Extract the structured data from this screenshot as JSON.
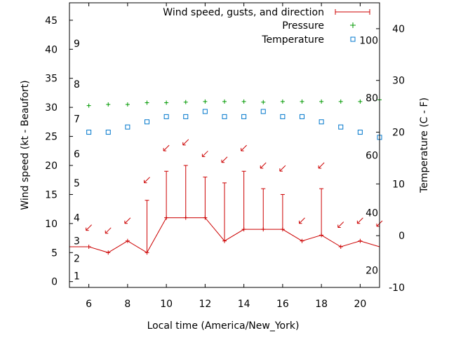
{
  "chart_data": {
    "type": "line",
    "xlabel": "Local time (America/New_York)",
    "ylabel_left": "Wind speed (kt - Beaufort)",
    "ylabel_right": "Temperature (C - F)",
    "xlim": [
      5,
      21
    ],
    "ylim_left": [
      -1,
      48
    ],
    "ylim_right": [
      -10,
      45
    ],
    "x_ticks": [
      6,
      8,
      10,
      12,
      14,
      16,
      18,
      20
    ],
    "y_left_ticks": [
      0,
      5,
      10,
      15,
      20,
      25,
      30,
      35,
      40,
      45
    ],
    "y_right_ticks": [
      -10,
      0,
      10,
      20,
      30,
      40
    ],
    "beaufort_scale": [
      {
        "label": "1",
        "kt": 1
      },
      {
        "label": "2",
        "kt": 4
      },
      {
        "label": "3",
        "kt": 7
      },
      {
        "label": "4",
        "kt": 11
      },
      {
        "label": "5",
        "kt": 17
      },
      {
        "label": "6",
        "kt": 22
      },
      {
        "label": "7",
        "kt": 28
      },
      {
        "label": "8",
        "kt": 34
      },
      {
        "label": "9",
        "kt": 41
      }
    ],
    "fahrenheit_scale": [
      {
        "label": "20",
        "f": 20
      },
      {
        "label": "40",
        "f": 40
      },
      {
        "label": "60",
        "f": 60
      },
      {
        "label": "80",
        "f": 80
      },
      {
        "label": "100",
        "f": 100
      }
    ],
    "series": [
      {
        "name": "Wind speed, gusts, and direction",
        "color": "#cc0000",
        "x": [
          5,
          6,
          7,
          8,
          9,
          10,
          11,
          12,
          13,
          14,
          15,
          16,
          17,
          18,
          19,
          20,
          21
        ],
        "wind": [
          6,
          6,
          5,
          7,
          5,
          11,
          11,
          11,
          7,
          9,
          9,
          9,
          7,
          8,
          6,
          7,
          6
        ],
        "gusts": [
          null,
          null,
          null,
          null,
          14,
          19,
          20,
          18,
          17,
          19,
          16,
          15,
          null,
          16,
          null,
          null,
          null
        ]
      },
      {
        "name": "Pressure",
        "color": "#009900",
        "x": [
          6,
          7,
          8,
          9,
          10,
          11,
          12,
          13,
          14,
          15,
          16,
          17,
          18,
          19,
          20,
          21
        ],
        "values": [
          30.3,
          30.5,
          30.5,
          30.8,
          30.8,
          30.9,
          31.0,
          31.0,
          31.0,
          30.9,
          31.0,
          31.0,
          31.0,
          31.0,
          31.0,
          31.3
        ]
      },
      {
        "name": "Temperature",
        "color": "#0077cc",
        "x": [
          6,
          7,
          8,
          9,
          10,
          11,
          12,
          13,
          14,
          15,
          16,
          17,
          18,
          19,
          20,
          21
        ],
        "values": [
          20,
          20,
          21,
          22,
          23,
          23,
          24,
          23,
          23,
          24,
          23,
          23,
          22,
          21,
          20,
          19
        ]
      }
    ],
    "wind_direction_arrows": [
      {
        "x": 6,
        "kt": 9.3
      },
      {
        "x": 7,
        "kt": 8.8
      },
      {
        "x": 8,
        "kt": 10.5
      },
      {
        "x": 9,
        "kt": 17.5
      },
      {
        "x": 10,
        "kt": 23
      },
      {
        "x": 11,
        "kt": 24
      },
      {
        "x": 12,
        "kt": 22
      },
      {
        "x": 13,
        "kt": 21
      },
      {
        "x": 14,
        "kt": 23
      },
      {
        "x": 15,
        "kt": 20
      },
      {
        "x": 16,
        "kt": 19.5
      },
      {
        "x": 17,
        "kt": 10.5
      },
      {
        "x": 18,
        "kt": 20
      },
      {
        "x": 19,
        "kt": 9.8
      },
      {
        "x": 20,
        "kt": 10.5
      },
      {
        "x": 21,
        "kt": 10
      }
    ]
  }
}
